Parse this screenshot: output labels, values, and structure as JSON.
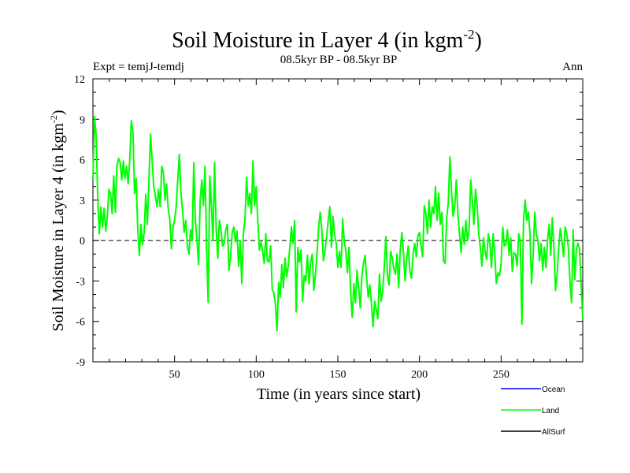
{
  "chart_data": {
    "type": "line",
    "title": "Soil Moisture in Layer 4 (in kgm",
    "title_sup": "-2",
    "title_end": ")",
    "subtitle": "08.5kyr BP - 08.5kyr BP",
    "left_label": "Expt = temjJ-temdj",
    "right_label": "Ann",
    "xlabel": "Time (in years since start)",
    "ylabel": "Soil Moisture in Layer 4 (in kgm",
    "ylabel_sup": "-2",
    "ylabel_end": ")",
    "xlim": [
      0,
      300
    ],
    "ylim": [
      -9,
      12
    ],
    "x_ticks": [
      50,
      100,
      150,
      200,
      250
    ],
    "x_tick_labels": [
      "50",
      "100",
      "150",
      "200",
      "250"
    ],
    "y_ticks": [
      -9,
      -6,
      -3,
      0,
      3,
      6,
      9,
      12
    ],
    "y_tick_labels": [
      "-9",
      "-6",
      "-3",
      "0",
      "3",
      "6",
      "9",
      "12"
    ],
    "zero_line": "dashed",
    "legend_position": "bottom-right",
    "series": [
      {
        "name": "Ocean",
        "color": "#0000ff",
        "values": []
      },
      {
        "name": "Land",
        "color": "#00ff00",
        "values": [
          4.5,
          9.2,
          7.8,
          3.2,
          0.5,
          2.5,
          1.0,
          2.4,
          0.7,
          1.8,
          3.8,
          3.5,
          2.0,
          4.8,
          2.1,
          5.5,
          6.1,
          5.8,
          4.5,
          5.9,
          4.6,
          5.5,
          4.2,
          6.0,
          8.9,
          8.1,
          3.5,
          4.6,
          0.8,
          -1.1,
          1.2,
          -0.3,
          0.6,
          3.4,
          1.2,
          4.5,
          7.9,
          5.9,
          4.0,
          3.3,
          2.5,
          3.8,
          2.5,
          5.5,
          5.1,
          3.0,
          4.2,
          2.4,
          1.6,
          -0.6,
          0.9,
          1.5,
          2.5,
          4.5,
          6.4,
          3.5,
          2.2,
          0.6,
          1.5,
          -0.4,
          -1.0,
          0.8,
          0.0,
          5.8,
          1.5,
          0.0,
          -1.8,
          3.0,
          4.5,
          2.6,
          5.5,
          -0.5,
          -4.6,
          4.8,
          2.6,
          0.0,
          5.8,
          0.8,
          -1.3,
          1.5,
          0.8,
          -0.4,
          -0.2,
          0.8,
          1.2,
          -2.2,
          -1.2,
          0.6,
          1.0,
          -0.1,
          0.7,
          -1.9,
          0.0,
          -3.2,
          0.5,
          1.6,
          4.7,
          2.6,
          3.5,
          2.0,
          5.9,
          2.6,
          4.0,
          1.5,
          -0.7,
          -0.1,
          -0.8,
          -1.7,
          0.5,
          -1.5,
          -1.6,
          -0.4,
          -3.6,
          -3.9,
          -4.7,
          -6.7,
          -3.1,
          -4.2,
          -1.8,
          -3.5,
          -1.3,
          -2.7,
          -1.9,
          -0.5,
          1.0,
          -0.2,
          1.5,
          -5.3,
          -0.5,
          -1.6,
          -0.7,
          -4.5,
          -2.6,
          -3.0,
          -1.1,
          -3.2,
          -1.6,
          -1.0,
          -3.7,
          -2.5,
          -1.0,
          1.0,
          2.1,
          0.8,
          -1.5,
          -0.7,
          0.3,
          1.5,
          2.5,
          -0.5,
          1.8,
          0.4,
          -0.2,
          -2.0,
          -0.8,
          -2.0,
          1.6,
          0.0,
          -0.8,
          -2.4,
          -0.5,
          -3.9,
          -5.7,
          -3.2,
          -4.6,
          -2.2,
          -3.5,
          -5.0,
          -2.6,
          -1.7,
          -1.1,
          -2.8,
          -4.2,
          -3.3,
          -4.7,
          -6.4,
          -4.5,
          -5.1,
          -5.8,
          -2.5,
          -4.5,
          -3.8,
          -2.0,
          0.3,
          -2.6,
          -3.3,
          -0.8,
          -1.3,
          -2.1,
          -2.5,
          -1.0,
          -3.5,
          -0.7,
          0.6,
          -0.9,
          -3.0,
          -1.3,
          -0.4,
          -2.3,
          -2.8,
          -1.0,
          -0.2,
          -1.2,
          0.3,
          0.6,
          -0.4,
          -1.2,
          2.6,
          2.0,
          0.5,
          3.0,
          1.0,
          2.5,
          2.0,
          4.0,
          1.5,
          3.5,
          1.2,
          2.1,
          -1.5,
          -1.7,
          1.7,
          2.8,
          6.2,
          3.7,
          1.8,
          2.5,
          4.5,
          2.0,
          0.5,
          -0.9,
          1.0,
          -0.3,
          1.5,
          0.0,
          0.8,
          4.5,
          3.0,
          1.2,
          3.8,
          2.6,
          0.5,
          -0.5,
          -1.9,
          0.2,
          -0.8,
          -1.4,
          0.5,
          -0.2,
          -2.0,
          0.5,
          -0.9,
          -3.2,
          -2.4,
          -2.6,
          -1.7,
          1.0,
          -0.4,
          -0.3,
          0.8,
          -1.1,
          0.2,
          -2.3,
          -0.9,
          -1.0,
          -1.9,
          0.5,
          0.0,
          -6.2,
          1.5,
          3.0,
          1.5,
          2.1,
          0.6,
          -3.2,
          -1.1,
          2.1,
          0.5,
          0.0,
          -1.5,
          -0.2,
          -2.2,
          -0.5,
          -2.0,
          0.0,
          1.2,
          -1.1,
          1.7,
          -0.5,
          -3.7,
          -2.5,
          -0.5,
          0.9,
          0.0,
          -1.2,
          1.0,
          0.5,
          -0.5,
          -3.0,
          -4.6,
          0.8,
          -2.9,
          -0.7,
          -0.2,
          -0.6,
          -3.2,
          -5.8
        ]
      },
      {
        "name": "AllSurf",
        "color": "#000000",
        "values": []
      }
    ]
  }
}
